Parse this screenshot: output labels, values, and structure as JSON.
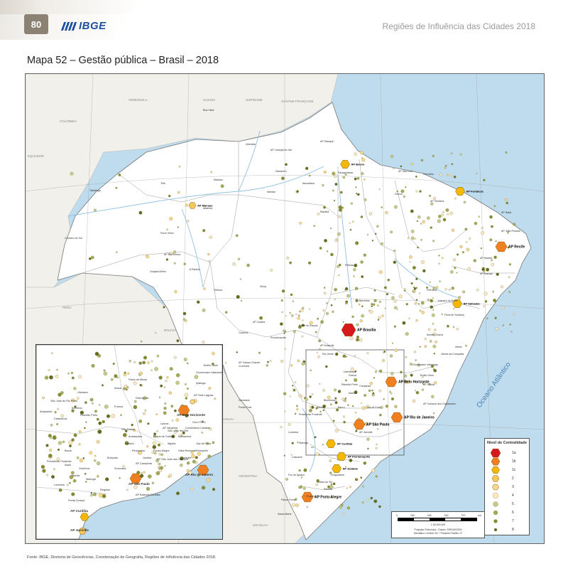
{
  "header": {
    "page_number": "80",
    "logo_text": "IBGE",
    "publication_title": "Regiões de Influência das Cidades 2018",
    "map_title": "Mapa 52 – Gestão pública – Brasil – 2018"
  },
  "map": {
    "countries": [
      "COLÔMBIA",
      "VENEZUELA",
      "GUIANA",
      "SURINAME",
      "GUYANE FRANÇAISE",
      "PERU",
      "BOLÍVIA",
      "PARAGUAI",
      "ARGENTINA",
      "URUGUAI",
      "EQUADOR"
    ],
    "ocean_label": "Oceano Atlântico",
    "major_capitals": [
      {
        "label": "AP Brasília",
        "level": "1a"
      },
      {
        "label": "AP São Paulo",
        "level": "1b"
      },
      {
        "label": "AP Rio de Janeiro",
        "level": "1b"
      },
      {
        "label": "AP Belo Horizonte",
        "level": "1b"
      },
      {
        "label": "AP Porto Alegre",
        "level": "1b"
      },
      {
        "label": "AP Recife",
        "level": "1b"
      },
      {
        "label": "AP Salvador",
        "level": "1c"
      },
      {
        "label": "AP Curitiba",
        "level": "1c"
      },
      {
        "label": "AP Fortaleza",
        "level": "1c"
      },
      {
        "label": "AP Belém",
        "level": "1c"
      },
      {
        "label": "AP Goiânia",
        "level": "1c"
      },
      {
        "label": "AP Florianópolis",
        "level": "1c"
      },
      {
        "label": "AP Manaus",
        "level": "2"
      }
    ],
    "city_labels": [
      "Boa Vista",
      "AP Macapá",
      "AP Laranjal do Jari",
      "Santarém",
      "Manaus",
      "Tefé",
      "Tabatinga",
      "Itacoatiara",
      "Itaituba",
      "Altamira",
      "Marabá",
      "Paragominas",
      "AP São Luís",
      "Parnaíba",
      "Sobral",
      "AP Teresina",
      "AP Natal",
      "AP João Pessoa",
      "AP Maceió",
      "AP Aracaju",
      "Petrolina",
      "Juazeiro do Norte",
      "Barreiras",
      "Palmas",
      "Porto Velho",
      "AP Rio Branco",
      "Cruzeiro do Sul",
      "Guajará-Mirim",
      "Ji-Paraná",
      "Vilhena",
      "Sinop",
      "AP Cuiabá",
      "Cáceres",
      "Rondonópolis",
      "Barra do Garças",
      "AP Campo Grande",
      "Corumbá",
      "Dourados",
      "Ponta Porã",
      "AP Anápolis",
      "Rio Verde",
      "Uberlândia",
      "Montes Claros",
      "Teófilo Otoni",
      "Governador Valadares",
      "AP Vitória",
      "AP Campos dos Goytacazes",
      "Ilhéus",
      "Vitória da Conquista",
      "Feira de Santana",
      "Juiz de Fora",
      "Ribeirão Preto",
      "Presidente Prudente",
      "Londrina",
      "Maringá",
      "Cascavel",
      "Foz do Iguaçu",
      "Chapecó",
      "Passo Fundo",
      "Santa Maria",
      "Pelotas",
      "Uruguaiana",
      "Caxias do Sul",
      "AP Joinville",
      "Blumenau",
      "Santos",
      "Bauru",
      "Marília",
      "Campinas",
      "Franca",
      "Uberaba"
    ],
    "inset_labels": [
      "AP Belo Horizonte",
      "AP São Paulo",
      "AP Rio de Janeiro",
      "AP Curitiba",
      "AP Joinville",
      "AP Sete Lagoas",
      "AP Varginha",
      "Divinópolis",
      "Uberaba",
      "Ribeirão Preto",
      "Franca",
      "Bauru",
      "Marília",
      "AP Campinas",
      "Sorocaba",
      "Jundiaí",
      "AP São José dos Campos",
      "Taubaté",
      "Volta Redonda",
      "Petrópolis",
      "Juiz de Fora",
      "Londrina",
      "Maringá",
      "Ponta Grossa",
      "AP Baixada Santista",
      "Registro",
      "São Carlos",
      "Araraquara",
      "Presidente Prudente",
      "Assis",
      "Ourinhos",
      "Botucatu",
      "Piracicaba",
      "Limeira",
      "Governador Valadares",
      "Ipatinga",
      "Teófilo Otoni",
      "Poços de Caldas",
      "Pouso Alegre",
      "Itajubá",
      "Lavras",
      "Barbacena",
      "São João del-Rei",
      "Conselheiro Lafaiete",
      "Ouro Preto",
      "Patos de Minas",
      "Araxá",
      "Barretos",
      "São José do Rio Preto",
      "Catanduva",
      "Araçatuba"
    ]
  },
  "legend": {
    "title": "Nível de Centralidade",
    "levels": [
      "1a",
      "1b",
      "1c",
      "2",
      "3",
      "4",
      "5",
      "6",
      "7",
      "8"
    ],
    "colors": {
      "1a": "#d7191c",
      "1b": "#f07f22",
      "1c": "#f5b800",
      "2": "#f6c956",
      "3": "#fad98b",
      "4": "#fde8c0",
      "5": "#c7c98a",
      "6": "#a4aa55",
      "7": "#858c2c",
      "8": "#656b1b"
    }
  },
  "scale": {
    "ticks": [
      "0",
      "180",
      "360",
      "540",
      "720"
    ],
    "unit": "km",
    "scale_text": "1:18.000.000",
    "note1": "Projeção Policônica - Datum: SIRGAS2000",
    "note2": "Meridiano Central: 54° / Paralelo Padrão: 0°"
  },
  "source": "Fonte: IBGE, Diretoria de Geociências, Coordenação de Geografia, Regiões de Influência das Cidades 2018."
}
